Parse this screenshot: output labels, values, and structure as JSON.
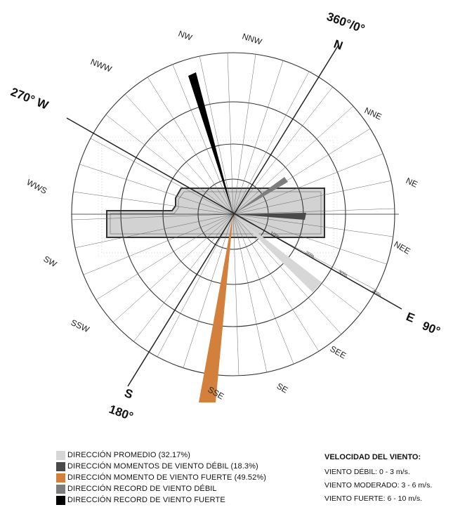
{
  "axes": {
    "north": "N",
    "north_deg": "360°/0°",
    "east": "E",
    "east_deg": "90°",
    "south": "S",
    "south_deg": "180°",
    "west": "270° W"
  },
  "directions": [
    {
      "id": "nnw",
      "label": "NNW"
    },
    {
      "id": "nw",
      "label": "NW"
    },
    {
      "id": "nww",
      "label": "NWW"
    },
    {
      "id": "nne",
      "label": "NNE"
    },
    {
      "id": "ne",
      "label": "NE"
    },
    {
      "id": "nee",
      "label": "NEE"
    },
    {
      "id": "see",
      "label": "SEE"
    },
    {
      "id": "se",
      "label": "SE"
    },
    {
      "id": "ssw",
      "label": "SSW"
    },
    {
      "id": "sw",
      "label": "SW"
    },
    {
      "id": "wws",
      "label": "WWS"
    },
    {
      "id": "sse",
      "label": "SSE"
    }
  ],
  "rings": [
    "10%",
    "20%",
    "30%",
    "40%"
  ],
  "legend": [
    {
      "label": "DIRECCIÓN PROMEDIO (32.17%)",
      "color": "#d7d7d7"
    },
    {
      "label": "DIRECCIÓN MOMENTOS DE VIENTO DÉBIL  (18.3%)",
      "color": "#4a4a4a"
    },
    {
      "label": "DIRECCIÓN MOMENTO DE VIENTO FUERTE (49.52%)",
      "color": "#d4803d"
    },
    {
      "label": "DIRECCIÓN RECORD DE VIENTO DÉBIL",
      "color": "#7d7d7d"
    },
    {
      "label": "DIRECCIÓN RECORD DE VIENTO FUERTE",
      "color": "#000000"
    }
  ],
  "speed": {
    "title": "VELOCIDAD DEL VIENTO:",
    "lines": [
      "VIENTO DÉBIL: 0 - 3 m/s.",
      "VIENTO MODERADO: 3 - 6 m/s.",
      "VIENTO FUERTE: 6 - 10 m/s."
    ]
  },
  "colors": {
    "promedio": "#d7d7d7",
    "debil": "#4a4a4a",
    "fuerte": "#d4803d",
    "record_debil": "#7d7d7d",
    "record_fuerte": "#000000"
  }
}
